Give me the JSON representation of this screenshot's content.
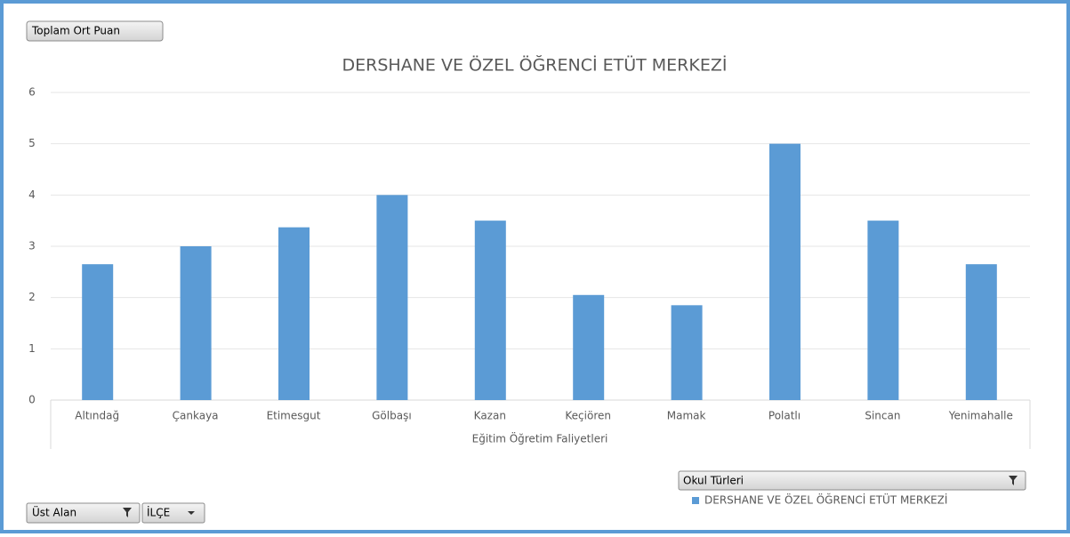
{
  "chart_data": {
    "type": "bar",
    "title": "DERSHANE VE ÖZEL ÖĞRENCİ ETÜT MERKEZİ",
    "value_field": "Toplam Ort Puan",
    "x_label": "Eğitim Öğretim Faliyetleri",
    "legend_title": "Okul Türleri",
    "filter_buttons": [
      "Üst Alan",
      "İLÇE"
    ],
    "categories": [
      "Altındağ",
      "Çankaya",
      "Etimesgut",
      "Gölbaşı",
      "Kazan",
      "Keçiören",
      "Mamak",
      "Polatlı",
      "Sincan",
      "Yenimahalle"
    ],
    "series": [
      {
        "name": "DERSHANE VE ÖZEL ÖĞRENCİ ETÜT MERKEZİ",
        "color": "#5b9bd5",
        "values": [
          2.65,
          3.0,
          3.37,
          4.0,
          3.5,
          2.05,
          1.85,
          5.0,
          3.5,
          2.65
        ]
      }
    ],
    "ylim": [
      0,
      6
    ],
    "yticks": [
      0,
      1,
      2,
      3,
      4,
      5,
      6
    ],
    "grid": true
  }
}
